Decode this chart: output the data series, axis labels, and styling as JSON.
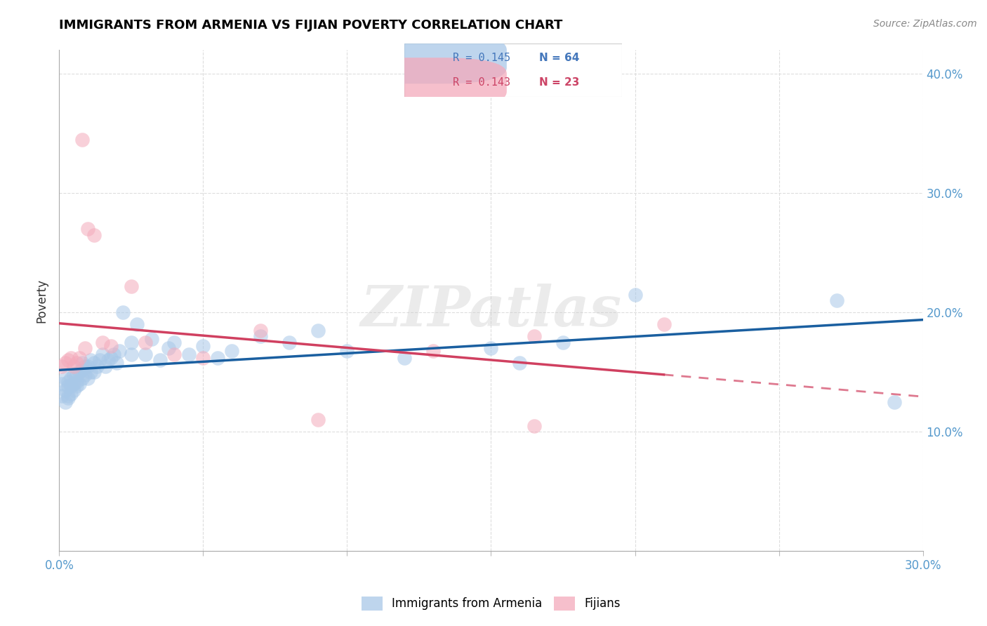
{
  "title": "IMMIGRANTS FROM ARMENIA VS FIJIAN POVERTY CORRELATION CHART",
  "source": "Source: ZipAtlas.com",
  "ylabel": "Poverty",
  "xlim": [
    0.0,
    0.3
  ],
  "ylim": [
    0.0,
    0.42
  ],
  "blue_color": "#A8C8E8",
  "pink_color": "#F4AABB",
  "blue_line_color": "#1A5FA0",
  "pink_line_color": "#D04060",
  "R_blue": 0.145,
  "N_blue": 64,
  "R_pink": 0.143,
  "N_pink": 23,
  "blue_scatter_x": [
    0.001,
    0.001,
    0.002,
    0.002,
    0.002,
    0.003,
    0.003,
    0.003,
    0.003,
    0.004,
    0.004,
    0.004,
    0.005,
    0.005,
    0.005,
    0.006,
    0.006,
    0.006,
    0.007,
    0.007,
    0.008,
    0.008,
    0.008,
    0.009,
    0.009,
    0.01,
    0.01,
    0.011,
    0.011,
    0.012,
    0.012,
    0.013,
    0.014,
    0.015,
    0.016,
    0.017,
    0.018,
    0.019,
    0.02,
    0.021,
    0.022,
    0.025,
    0.025,
    0.027,
    0.03,
    0.032,
    0.035,
    0.038,
    0.04,
    0.045,
    0.05,
    0.055,
    0.06,
    0.07,
    0.08,
    0.09,
    0.1,
    0.12,
    0.15,
    0.16,
    0.175,
    0.2,
    0.27,
    0.29
  ],
  "blue_scatter_y": [
    0.13,
    0.14,
    0.125,
    0.135,
    0.145,
    0.128,
    0.13,
    0.138,
    0.142,
    0.132,
    0.138,
    0.145,
    0.135,
    0.14,
    0.148,
    0.138,
    0.142,
    0.148,
    0.14,
    0.15,
    0.145,
    0.152,
    0.158,
    0.148,
    0.155,
    0.145,
    0.155,
    0.15,
    0.16,
    0.15,
    0.158,
    0.155,
    0.16,
    0.165,
    0.155,
    0.16,
    0.162,
    0.165,
    0.158,
    0.168,
    0.2,
    0.165,
    0.175,
    0.19,
    0.165,
    0.178,
    0.16,
    0.17,
    0.175,
    0.165,
    0.172,
    0.162,
    0.168,
    0.18,
    0.175,
    0.185,
    0.168,
    0.162,
    0.17,
    0.158,
    0.175,
    0.215,
    0.21,
    0.125
  ],
  "pink_scatter_x": [
    0.001,
    0.002,
    0.003,
    0.004,
    0.005,
    0.006,
    0.007,
    0.008,
    0.009,
    0.01,
    0.012,
    0.015,
    0.018,
    0.025,
    0.03,
    0.04,
    0.05,
    0.07,
    0.09,
    0.13,
    0.165,
    0.165,
    0.21
  ],
  "pink_scatter_y": [
    0.155,
    0.158,
    0.16,
    0.162,
    0.155,
    0.158,
    0.162,
    0.345,
    0.17,
    0.27,
    0.265,
    0.175,
    0.172,
    0.222,
    0.175,
    0.165,
    0.162,
    0.185,
    0.11,
    0.168,
    0.18,
    0.105,
    0.19
  ]
}
